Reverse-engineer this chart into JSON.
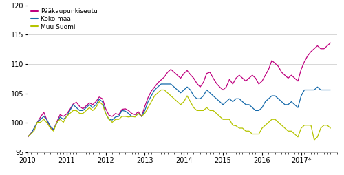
{
  "ylim": [
    95,
    120
  ],
  "yticks": [
    95,
    100,
    105,
    110,
    115,
    120
  ],
  "xlim": [
    2010.0,
    2017.92
  ],
  "xtick_labels": [
    "2010",
    "2011",
    "2012",
    "2013",
    "2014",
    "2015",
    "2016",
    "2017*"
  ],
  "xtick_positions": [
    2010.0,
    2011.0,
    2012.0,
    2013.0,
    2014.0,
    2015.0,
    2016.0,
    2017.0
  ],
  "legend_labels": [
    "Pääkaupunkiseutu",
    "Koko maa",
    "Muu Suomi"
  ],
  "colors": [
    "#bf007f",
    "#1469aa",
    "#b5c400"
  ],
  "background_color": "#ffffff",
  "grid_color": "#c8c8c8",
  "linewidth": 0.9,
  "figsize": [
    5.0,
    2.54
  ],
  "dpi": 100,
  "series": {
    "paakaupunkiseutu": [
      97.5,
      98.2,
      99.0,
      100.1,
      101.0,
      101.8,
      100.4,
      99.2,
      98.8,
      100.2,
      101.4,
      101.1,
      101.5,
      102.3,
      103.2,
      103.5,
      102.8,
      102.4,
      102.9,
      103.4,
      103.1,
      103.6,
      104.4,
      104.1,
      102.4,
      101.3,
      101.1,
      101.6,
      101.4,
      102.3,
      102.4,
      102.1,
      101.6,
      101.4,
      101.9,
      101.1,
      102.8,
      104.3,
      105.4,
      106.1,
      106.8,
      107.3,
      107.8,
      108.6,
      109.1,
      108.6,
      108.1,
      107.6,
      108.4,
      108.9,
      108.2,
      107.6,
      106.7,
      106.1,
      106.9,
      108.4,
      108.6,
      107.6,
      106.7,
      106.1,
      105.6,
      106.1,
      107.4,
      106.6,
      107.6,
      108.1,
      107.6,
      107.1,
      107.6,
      108.1,
      107.6,
      106.6,
      107.1,
      108.1,
      109.1,
      110.6,
      110.1,
      109.6,
      108.6,
      108.1,
      107.6,
      108.1,
      107.6,
      107.1,
      109.1,
      110.4,
      111.4,
      112.1,
      112.6,
      113.1,
      112.6,
      112.6,
      113.1,
      113.6
    ],
    "koko_maa": [
      97.6,
      98.1,
      99.1,
      100.1,
      100.6,
      101.1,
      100.5,
      99.4,
      98.9,
      100.0,
      101.0,
      100.6,
      101.1,
      102.1,
      103.1,
      102.6,
      102.1,
      102.1,
      102.6,
      103.1,
      102.6,
      103.1,
      104.0,
      103.6,
      101.6,
      100.6,
      100.5,
      101.0,
      101.1,
      102.1,
      102.0,
      101.6,
      101.1,
      101.1,
      101.6,
      101.1,
      102.1,
      103.6,
      104.6,
      105.6,
      106.1,
      106.6,
      106.6,
      106.6,
      106.6,
      106.1,
      105.6,
      105.1,
      105.6,
      106.1,
      105.6,
      104.6,
      104.1,
      104.1,
      104.6,
      105.6,
      105.1,
      104.6,
      104.1,
      103.6,
      103.1,
      103.6,
      104.1,
      103.6,
      104.1,
      104.1,
      103.6,
      103.1,
      103.1,
      102.6,
      102.1,
      102.1,
      102.6,
      103.6,
      104.1,
      104.6,
      104.6,
      104.1,
      103.6,
      103.1,
      103.1,
      103.6,
      103.1,
      102.6,
      104.6,
      105.6,
      105.6,
      105.6,
      105.6,
      106.1,
      105.6,
      105.6,
      105.6,
      105.6
    ],
    "muu_suomi": [
      97.6,
      98.1,
      98.6,
      100.1,
      100.1,
      100.6,
      100.0,
      99.1,
      98.6,
      100.1,
      100.6,
      100.1,
      101.1,
      101.6,
      102.1,
      102.1,
      101.6,
      101.6,
      102.1,
      102.6,
      102.1,
      102.6,
      103.6,
      103.1,
      101.6,
      100.6,
      100.1,
      100.6,
      100.6,
      101.1,
      101.1,
      101.0,
      101.1,
      101.0,
      101.6,
      101.1,
      101.6,
      102.6,
      103.6,
      104.6,
      105.1,
      105.6,
      105.6,
      105.1,
      104.6,
      104.1,
      103.6,
      103.1,
      103.6,
      104.6,
      103.6,
      102.6,
      102.1,
      102.1,
      102.1,
      102.6,
      102.1,
      102.1,
      101.6,
      101.1,
      100.6,
      100.6,
      100.6,
      99.6,
      99.5,
      99.1,
      99.1,
      98.6,
      98.6,
      98.1,
      98.1,
      98.1,
      99.1,
      99.6,
      100.1,
      100.6,
      100.6,
      100.1,
      99.6,
      99.1,
      98.6,
      98.6,
      98.1,
      97.6,
      99.1,
      99.6,
      99.6,
      99.6,
      97.1,
      97.6,
      99.1,
      99.6,
      99.6,
      99.1
    ]
  }
}
